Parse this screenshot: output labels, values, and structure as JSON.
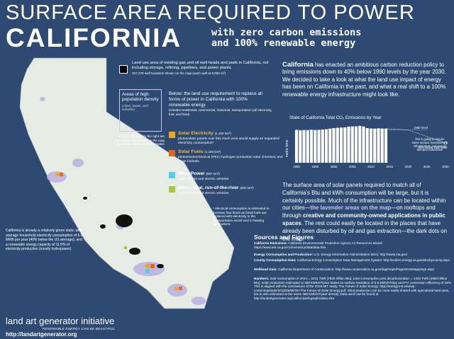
{
  "header": {
    "title_line1": "SURFACE AREA REQUIRED TO POWER",
    "title_line2": "CALIFORNIA",
    "subtitle_line1": "with zero carbon emissions",
    "subtitle_line2": "and 100% renewable energy"
  },
  "legend": {
    "gas_text": "Land use area of existing gas and oil well heads and pads in California, not including storage, refining, pipelines, and power plants.",
    "gas_subtext": "227,278 well locations shown on the map (each well at 8,000 m²)",
    "pop_title": "Areas of high population density",
    "pop_sub": "(cities, towns, and suburbs)",
    "below_title": "Below: the land use requirement to replace all forms of power in California with 100% renewable energy",
    "below_sub": "includes residential, commercial, industrial, transportation (all electricity, fuel, and heat)",
    "four_squares": "the four squares to the right are also shown distributed on the map by county relative to consumption",
    "items": [
      {
        "label": "Solar Electricity",
        "area": "(1,184 km²)",
        "desc": "photovoltaic panels over this much area would supply an expanded electricity consumption*",
        "color": "#f0a81e"
      },
      {
        "label": "Solar Fuels",
        "area": "(1,184 km²)",
        "desc": "photoelectrochemical (PEC) hydrogen production solar chemical, and algae biofuels",
        "color": "#e8651a"
      },
      {
        "label": "Wind Power",
        "area": "(987 km²)",
        "desc": "public transit and electric vehicles",
        "color": "#4fd0e8"
      },
      {
        "label": "Wave, tidal, run-of-the-river",
        "area": "(692 km²)",
        "desc": "public transit and electric vehicles",
        "color": "#a8c83a"
      }
    ],
    "elec_note": "* electrical consumption is estimated to increase four times as fossil fuels are replaced with electricity in the transportation sector and in heating applications."
  },
  "green_state": "California is already a relatively green state, with average household electricity consumption of 6.9 MWh per year (40% below the US average), and a renewable energy capacity of 11.5% of electricity production (mostly hydropower).",
  "branding": {
    "logo": "land art generator initiative",
    "tagline": "RENEWABLE ENERGY CAN BE BEAUTIFUL",
    "url": "http://landartgenerator.org"
  },
  "intro": {
    "lead": "California",
    "text": " has enacted an ambitious carbon reduction policy to bring emissions down to 40% below 1990 levels by the year 2030. We decided to take a look at what the land use impact of energy has been on California in the past, and what a real shift to a 100% renewable energy infrastructure might look like."
  },
  "chart_data": {
    "type": "bar",
    "title": "State of California Total CO₂ Emissions by Year",
    "ylabel": "metric tons",
    "x_ticks": [
      "1990",
      "1995",
      "2000",
      "2005",
      "2010",
      "2015",
      "2020",
      "2025",
      "2030"
    ],
    "categories": [
      "1990",
      "1991",
      "1992",
      "1993",
      "1994",
      "1995",
      "1996",
      "1997",
      "1998",
      "1999",
      "2000",
      "2001",
      "2002",
      "2003",
      "2004",
      "2005",
      "2006",
      "2007",
      "2008",
      "2009",
      "2010",
      "2011",
      "2012",
      "2013",
      "2014"
    ],
    "values": [
      431,
      424,
      427,
      425,
      432,
      428,
      431,
      437,
      440,
      448,
      455,
      460,
      462,
      465,
      475,
      477,
      478,
      485,
      475,
      455,
      450,
      448,
      452,
      450,
      448
    ],
    "ylim": [
      0,
      520
    ],
    "target_projection": [
      [
        2014,
        448
      ],
      [
        2020,
        431
      ],
      [
        2030,
        259
      ]
    ],
    "annotations": {
      "level_1990": "1990 level",
      "note": "this is going to require some serious investment in infrastructure and energy demand reductions!",
      "target": "40% below 1990 level"
    }
  },
  "para2": {
    "t1": "The surface area of solar panels required to match all of California’s Btu and kWh consumption will be large, but it is certainly possible. Much of the infrastructure can be located within our cities—",
    "t2": "the lavender areas on the map",
    "t3": "—on rooftops and through ",
    "t4": "creative and community-owned applications in public spaces",
    "t5": ". The rest could easily be located in the places that have already been disturbed by oil and gas extraction—the dark dots on the map."
  },
  "sources": {
    "heading": "Sources and Figures",
    "items": [
      {
        "label": "California Emissions:",
        "text": " California Environmental Protection Agency Air Resources Board: https://www.arb.ca.gov/cc/inventory/data/data.htm"
      },
      {
        "label": "Energy Consumption and Production:",
        "text": " U.S. Energy Information Administration (EIA): http://www.eia.gov/"
      },
      {
        "label": "County Consumption Data:",
        "text": " California Energy Consumption Data Management System: http://ecdms.energy.ca.gov/elecbycounty.aspx"
      },
      {
        "label": "Wellhead Data:",
        "text": " California Department of Conservation: http://www.conservation.ca.gov/dog/maps/Pages/GISMapping2.aspx"
      },
      {
        "label": "Numbers:",
        "text": " total consumption in 2014 = 2231 TWh (7620 trillion Btu); total consumption post decarbonization = 1420 TWh (4850 trillion Btu); solar production estimated at 380 kWh/m²/year based on surface insolation of 5.5 kWh/m²/day and PV conversion efficiency of 18%. This is aligned with the conclusions of the 2015 MIT study, The Future of Solar Energy: http://energy.mit.edu/wp-content/uploads/2015/05/MITEI-The-Future-of-Solar-Energy.pdf. Wind production can be more easily shared with agricultural land uses, but is also estimated at the same 380 kWh/m²/year density. Data used can be found at http://landartgenerator.org/californiainfographicdata.xlsx"
      }
    ]
  }
}
